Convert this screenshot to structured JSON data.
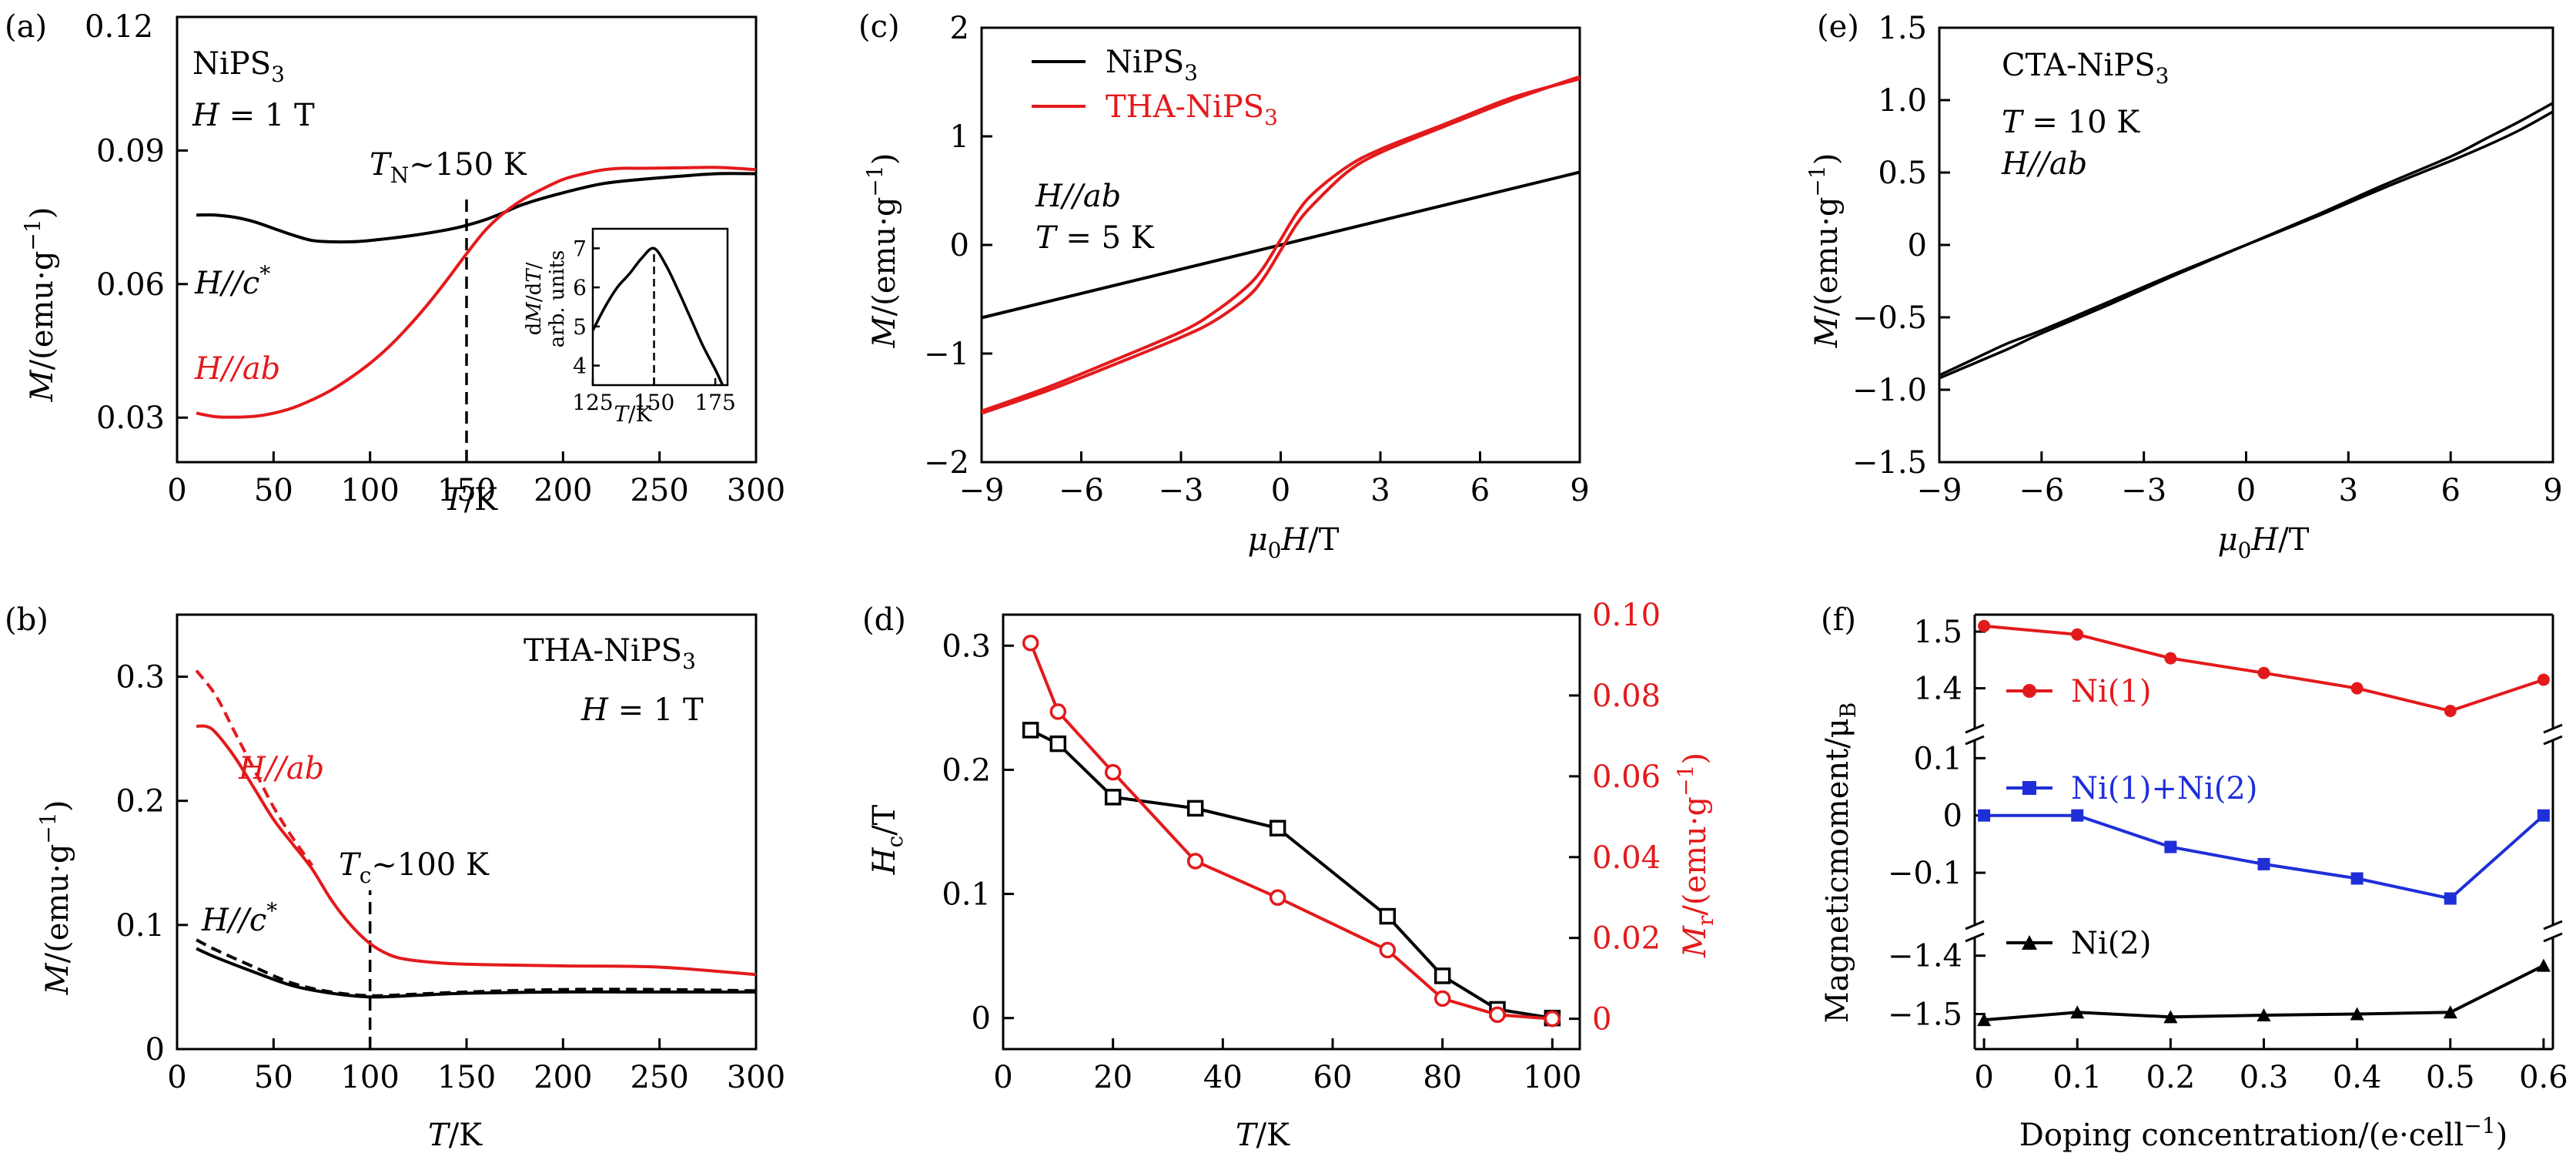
{
  "colors": {
    "black": "#000000",
    "red": "#e31a1c",
    "blue": "#1f2fd8"
  },
  "chart_data": [
    {
      "id": "a",
      "panel_label": "(a)",
      "type": "line",
      "xlabel": "T/K",
      "ylabel": "M/(emu·g⁻¹)",
      "xlim": [
        0,
        300
      ],
      "ylim": [
        0.02,
        0.12
      ],
      "xticks": [
        0,
        50,
        100,
        150,
        200,
        250,
        300
      ],
      "yticks": [
        0.03,
        0.06,
        0.09,
        0.12
      ],
      "ytick_labels": [
        "0.03",
        "0.06",
        "0.09",
        "0.12"
      ],
      "annotations": [
        "NiPS₃",
        "H = 1 T",
        "T_N~150 K",
        "H//c*",
        "H//ab"
      ],
      "vline": 150,
      "series": [
        {
          "name": "H//c*",
          "color": "#000000",
          "x": [
            10,
            20,
            30,
            40,
            50,
            60,
            70,
            80,
            90,
            100,
            120,
            140,
            150,
            160,
            170,
            180,
            200,
            220,
            240,
            260,
            280,
            300
          ],
          "y": [
            0.0755,
            0.0755,
            0.075,
            0.074,
            0.0725,
            0.071,
            0.0698,
            0.0695,
            0.0695,
            0.0698,
            0.0708,
            0.0722,
            0.0732,
            0.0745,
            0.0762,
            0.078,
            0.0805,
            0.0825,
            0.0835,
            0.0842,
            0.0848,
            0.0848
          ]
        },
        {
          "name": "H//ab",
          "color": "#e31a1c",
          "x": [
            10,
            20,
            30,
            40,
            50,
            60,
            70,
            80,
            90,
            100,
            110,
            120,
            130,
            140,
            150,
            160,
            170,
            180,
            190,
            200,
            210,
            220,
            230,
            240,
            260,
            280,
            300
          ],
          "y": [
            0.031,
            0.0302,
            0.0301,
            0.0303,
            0.031,
            0.0322,
            0.034,
            0.0362,
            0.039,
            0.0422,
            0.046,
            0.0505,
            0.0555,
            0.061,
            0.0668,
            0.0722,
            0.0762,
            0.0792,
            0.0815,
            0.0835,
            0.0847,
            0.0856,
            0.086,
            0.086,
            0.0861,
            0.0862,
            0.0857
          ]
        }
      ],
      "inset": {
        "ylabel": "dM/dT/ arb. units",
        "xlabel": "T/K",
        "xlim": [
          125,
          180
        ],
        "ylim": [
          3.5,
          7.5
        ],
        "xticks": [
          125,
          150,
          175
        ],
        "yticks": [
          4,
          5,
          6,
          7
        ],
        "vline": 150,
        "x": [
          125,
          130,
          135,
          140,
          145,
          150,
          155,
          160,
          165,
          170,
          175,
          178
        ],
        "y": [
          4.9,
          5.5,
          6.0,
          6.35,
          6.75,
          7.0,
          6.55,
          5.9,
          5.2,
          4.5,
          3.9,
          3.5
        ]
      }
    },
    {
      "id": "b",
      "panel_label": "(b)",
      "type": "line",
      "xlabel": "T/K",
      "ylabel": "M/(emu·g⁻¹)",
      "xlim": [
        0,
        300
      ],
      "ylim": [
        0,
        0.35
      ],
      "xticks": [
        0,
        50,
        100,
        150,
        200,
        250,
        300
      ],
      "yticks": [
        0,
        0.1,
        0.2,
        0.3
      ],
      "ytick_labels": [
        "0",
        "0.1",
        "0.2",
        "0.3"
      ],
      "annotations": [
        "THA-NiPS₃",
        "H = 1 T",
        "T_c~100 K",
        "H//ab",
        "H//c*"
      ],
      "vline": 100,
      "series": [
        {
          "name": "H//ab",
          "color": "#e31a1c",
          "dash": false,
          "x": [
            10,
            15,
            20,
            30,
            40,
            50,
            60,
            70,
            80,
            90,
            100,
            110,
            120,
            140,
            160,
            200,
            250,
            300
          ],
          "y": [
            0.26,
            0.26,
            0.255,
            0.235,
            0.21,
            0.185,
            0.165,
            0.145,
            0.12,
            0.1,
            0.085,
            0.076,
            0.072,
            0.069,
            0.068,
            0.067,
            0.066,
            0.06
          ]
        },
        {
          "name": "H//ab (dashed)",
          "color": "#e31a1c",
          "dash": true,
          "x": [
            10,
            20,
            30,
            40,
            50,
            60,
            70
          ],
          "y": [
            0.305,
            0.285,
            0.255,
            0.225,
            0.195,
            0.17,
            0.148
          ]
        },
        {
          "name": "H//c*",
          "color": "#000000",
          "dash": false,
          "x": [
            10,
            20,
            40,
            60,
            80,
            100,
            120,
            150,
            200,
            250,
            300
          ],
          "y": [
            0.081,
            0.074,
            0.062,
            0.051,
            0.045,
            0.042,
            0.043,
            0.045,
            0.046,
            0.046,
            0.046
          ]
        },
        {
          "name": "H//c* (dashed)",
          "color": "#000000",
          "dash": true,
          "x": [
            10,
            20,
            40,
            60,
            80,
            100,
            120,
            150,
            200,
            250,
            300
          ],
          "y": [
            0.088,
            0.08,
            0.066,
            0.053,
            0.046,
            0.043,
            0.044,
            0.046,
            0.048,
            0.048,
            0.047
          ]
        }
      ]
    },
    {
      "id": "c",
      "panel_label": "(c)",
      "type": "line",
      "xlabel": "μ₀H/T",
      "ylabel": "M/(emu·g⁻¹)",
      "xlim": [
        -9,
        9
      ],
      "ylim": [
        -2,
        2
      ],
      "xticks": [
        -9,
        -6,
        -3,
        0,
        3,
        6,
        9
      ],
      "yticks": [
        -2,
        -1,
        0,
        1,
        2
      ],
      "ytick_labels": [
        "−2",
        "−1",
        "0",
        "1",
        "2"
      ],
      "xtick_labels": [
        "−9",
        "−6",
        "−3",
        "0",
        "3",
        "6",
        "9"
      ],
      "legend": [
        "NiPS₃",
        "THA-NiPS₃"
      ],
      "annotations": [
        "H//ab",
        "T = 5 K"
      ],
      "series": [
        {
          "name": "NiPS₃",
          "color": "#000000",
          "x": [
            -9,
            9
          ],
          "y": [
            -0.67,
            0.67
          ]
        },
        {
          "name": "THA-NiPS₃ up",
          "color": "#e31a1c",
          "x": [
            -9,
            -7,
            -5,
            -3,
            -2,
            -1,
            -0.5,
            0,
            0.5,
            1,
            2,
            3,
            5,
            7,
            9
          ],
          "y": [
            -1.55,
            -1.34,
            -1.1,
            -0.85,
            -0.7,
            -0.48,
            -0.3,
            -0.05,
            0.2,
            0.38,
            0.67,
            0.85,
            1.1,
            1.34,
            1.55
          ]
        },
        {
          "name": "THA-NiPS₃ down",
          "color": "#e31a1c",
          "x": [
            -9,
            -7,
            -5,
            -3,
            -2,
            -1,
            -0.5,
            0,
            0.5,
            1,
            2,
            3,
            5,
            7,
            9
          ],
          "y": [
            -1.53,
            -1.31,
            -1.06,
            -0.8,
            -0.62,
            -0.38,
            -0.2,
            0.05,
            0.3,
            0.48,
            0.72,
            0.88,
            1.12,
            1.36,
            1.53
          ]
        }
      ]
    },
    {
      "id": "d",
      "panel_label": "(d)",
      "type": "line",
      "xlabel": "T/K",
      "ylabel": "H_c/T",
      "ylabel_right": "M_r/(emu·g⁻¹)",
      "xlim": [
        0,
        105
      ],
      "ylim": [
        -0.025,
        0.325
      ],
      "ylim_right": [
        -0.0075,
        0.1
      ],
      "xticks": [
        0,
        20,
        40,
        60,
        80,
        100
      ],
      "yticks": [
        0,
        0.1,
        0.2,
        0.3
      ],
      "ytick_labels": [
        "0",
        "0.1",
        "0.2",
        "0.3"
      ],
      "yticks_right": [
        0,
        0.02,
        0.04,
        0.06,
        0.08,
        0.1
      ],
      "ytick_labels_right": [
        "0",
        "0.02",
        "0.04",
        "0.06",
        "0.08",
        "0.10"
      ],
      "series": [
        {
          "name": "H_c",
          "color": "#000000",
          "marker": "square",
          "axis": "left",
          "x": [
            5,
            10,
            20,
            35,
            50,
            70,
            80,
            90,
            100
          ],
          "y": [
            0.232,
            0.221,
            0.178,
            0.169,
            0.153,
            0.082,
            0.034,
            0.007,
            0.0
          ]
        },
        {
          "name": "M_r",
          "color": "#e31a1c",
          "marker": "circle",
          "axis": "right",
          "x": [
            5,
            10,
            20,
            35,
            50,
            70,
            80,
            90,
            100
          ],
          "y": [
            0.093,
            0.076,
            0.061,
            0.039,
            0.03,
            0.017,
            0.005,
            0.001,
            0.0
          ]
        }
      ]
    },
    {
      "id": "e",
      "panel_label": "(e)",
      "type": "line",
      "xlabel": "μ₀H/T",
      "ylabel": "M/(emu·g⁻¹)",
      "xlim": [
        -9,
        9
      ],
      "ylim": [
        -1.5,
        1.5
      ],
      "xticks": [
        -9,
        -6,
        -3,
        0,
        3,
        6,
        9
      ],
      "xtick_labels": [
        "−9",
        "−6",
        "−3",
        "0",
        "3",
        "6",
        "9"
      ],
      "yticks": [
        -1.5,
        -1.0,
        -0.5,
        0,
        0.5,
        1.0,
        1.5
      ],
      "ytick_labels": [
        "−1.5",
        "−1.0",
        "−0.5",
        "0",
        "0.5",
        "1.0",
        "1.5"
      ],
      "annotations": [
        "CTA-NiPS₃",
        "T = 10 K",
        "H//ab"
      ],
      "series": [
        {
          "name": "CTA-NiPS₃",
          "color": "#000000",
          "x": [
            -9,
            -8,
            -7,
            -6,
            -4,
            -2,
            0,
            2,
            4,
            6,
            7,
            8,
            9
          ],
          "y": [
            -0.92,
            -0.82,
            -0.72,
            -0.61,
            -0.41,
            -0.2,
            0,
            0.2,
            0.41,
            0.61,
            0.73,
            0.85,
            0.98
          ]
        },
        {
          "name": "CTA-NiPS₃ return",
          "color": "#000000",
          "x": [
            -9,
            -8,
            -7,
            -6,
            -4,
            -2,
            0,
            2,
            4,
            6,
            7,
            8,
            9
          ],
          "y": [
            -0.9,
            -0.79,
            -0.68,
            -0.59,
            -0.39,
            -0.19,
            0,
            0.19,
            0.39,
            0.58,
            0.68,
            0.79,
            0.92
          ]
        }
      ]
    },
    {
      "id": "f",
      "panel_label": "(f)",
      "type": "line",
      "xlabel": "Doping concentration/(e·cell⁻¹)",
      "ylabel": "Magneticmoment/μB",
      "xlim": [
        -0.01,
        0.61
      ],
      "xticks": [
        0,
        0.1,
        0.2,
        0.3,
        0.4,
        0.5,
        0.6
      ],
      "xtick_labels": [
        "0",
        "0.1",
        "0.2",
        "0.3",
        "0.4",
        "0.5",
        "0.6"
      ],
      "segments": [
        {
          "ylim": [
            1.33,
            1.53
          ],
          "yticks": [
            1.4,
            1.5
          ],
          "ytick_labels": [
            "1.4",
            "1.5"
          ]
        },
        {
          "ylim": [
            -0.19,
            0.13
          ],
          "yticks": [
            -0.1,
            0,
            0.1
          ],
          "ytick_labels": [
            "−0.1",
            "0",
            "0.1"
          ]
        },
        {
          "ylim": [
            -1.56,
            -1.37
          ],
          "yticks": [
            -1.5,
            -1.4
          ],
          "ytick_labels": [
            "−1.5",
            "−1.4"
          ]
        }
      ],
      "series": [
        {
          "name": "Ni(1)",
          "color": "#e31a1c",
          "marker": "circle",
          "segment": 0,
          "x": [
            0,
            0.1,
            0.2,
            0.3,
            0.4,
            0.5,
            0.6
          ],
          "y": [
            1.51,
            1.495,
            1.453,
            1.427,
            1.4,
            1.36,
            1.415
          ]
        },
        {
          "name": "Ni(1)+Ni(2)",
          "color": "#1f2fd8",
          "marker": "square",
          "segment": 1,
          "x": [
            0,
            0.1,
            0.2,
            0.3,
            0.4,
            0.5,
            0.6
          ],
          "y": [
            0.0,
            0.0,
            -0.055,
            -0.085,
            -0.11,
            -0.145,
            0.0
          ]
        },
        {
          "name": "Ni(2)",
          "color": "#000000",
          "marker": "triangle",
          "segment": 2,
          "x": [
            0,
            0.1,
            0.2,
            0.3,
            0.4,
            0.5,
            0.6
          ],
          "y": [
            -1.51,
            -1.497,
            -1.505,
            -1.502,
            -1.5,
            -1.497,
            -1.417
          ]
        }
      ]
    }
  ]
}
